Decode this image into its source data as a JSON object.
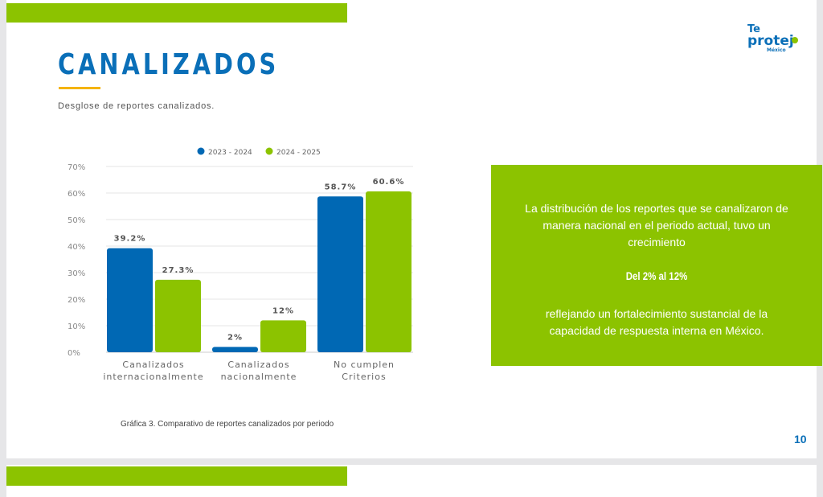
{
  "slide": {
    "title": "CANALIZADOS",
    "subtitle": "Desglose de reportes canalizados.",
    "caption": "Gráfica 3. Comparativo de reportes canalizados por periodo",
    "page_number": "10",
    "logo_text": "Te protejo México"
  },
  "callout": {
    "line1": "La distribución de los reportes que se canalizaron de manera nacional  en el periodo actual, tuvo un crecimiento",
    "highlight": "Del 2% al 12%",
    "line2": "reflejando un fortalecimiento sustancial de la capacidad de respuesta interna en México."
  },
  "colors": {
    "blue": "#0068b4",
    "green": "#8cc300"
  },
  "chart_data": {
    "type": "bar",
    "categories": [
      [
        "Canalizados",
        "internacionalmente"
      ],
      [
        "Canalizados",
        "nacionalmente"
      ],
      [
        "No cumplen",
        "Criterios"
      ]
    ],
    "series": [
      {
        "name": "2023 - 2024",
        "color": "#0068b4",
        "values": [
          39.2,
          2,
          58.7
        ],
        "labels": [
          "39.2%",
          "2%",
          "58.7%"
        ]
      },
      {
        "name": "2024 - 2025",
        "color": "#8cc300",
        "values": [
          27.3,
          12,
          60.6
        ],
        "labels": [
          "27.3%",
          "12%",
          "60.6%"
        ]
      }
    ],
    "yticks": [
      "0%",
      "10%",
      "20%",
      "30%",
      "40%",
      "50%",
      "60%",
      "70%"
    ],
    "ylim": [
      0,
      70
    ],
    "grid": true,
    "legend": "top"
  }
}
